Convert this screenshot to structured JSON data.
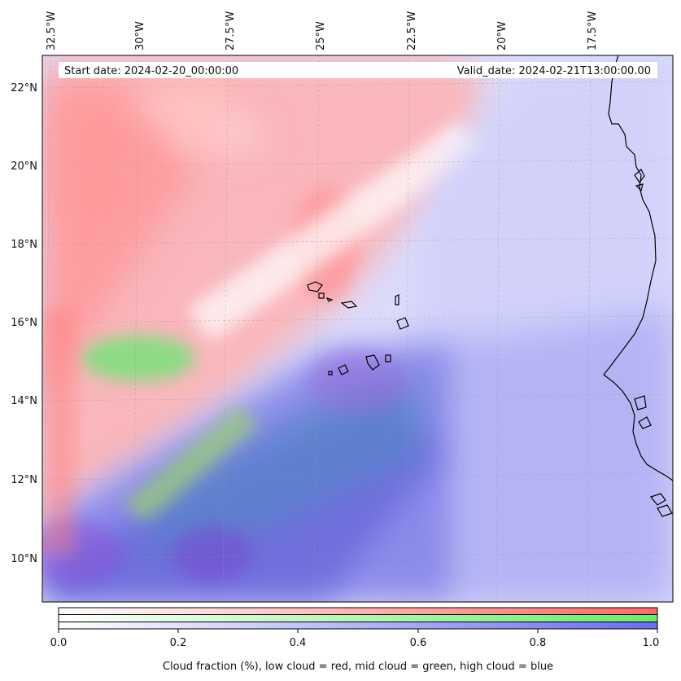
{
  "map": {
    "start_date": "Start date: 2024-02-20_00:00:00",
    "valid_date": "Valid_date: 2024-02-21T13:00:00.00",
    "lon_labels": [
      "32.5°W",
      "30°W",
      "27.5°W",
      "25°W",
      "22.5°W",
      "20°W",
      "17.5°W"
    ],
    "lat_labels": [
      "22°N",
      "20°N",
      "18°N",
      "16°N",
      "14°N",
      "12°N",
      "10°N"
    ],
    "layers": [
      "low cloud",
      "mid cloud",
      "high cloud"
    ],
    "layer_colors": {
      "low": "#ff6b6b",
      "mid": "#7ee57e",
      "high": "#6f6ff0"
    }
  },
  "colorbar": {
    "ticks": [
      "0.0",
      "0.2",
      "0.4",
      "0.6",
      "0.8",
      "1.0"
    ],
    "label": "Cloud fraction (%), low cloud = red, mid cloud = green, high cloud = blue"
  }
}
